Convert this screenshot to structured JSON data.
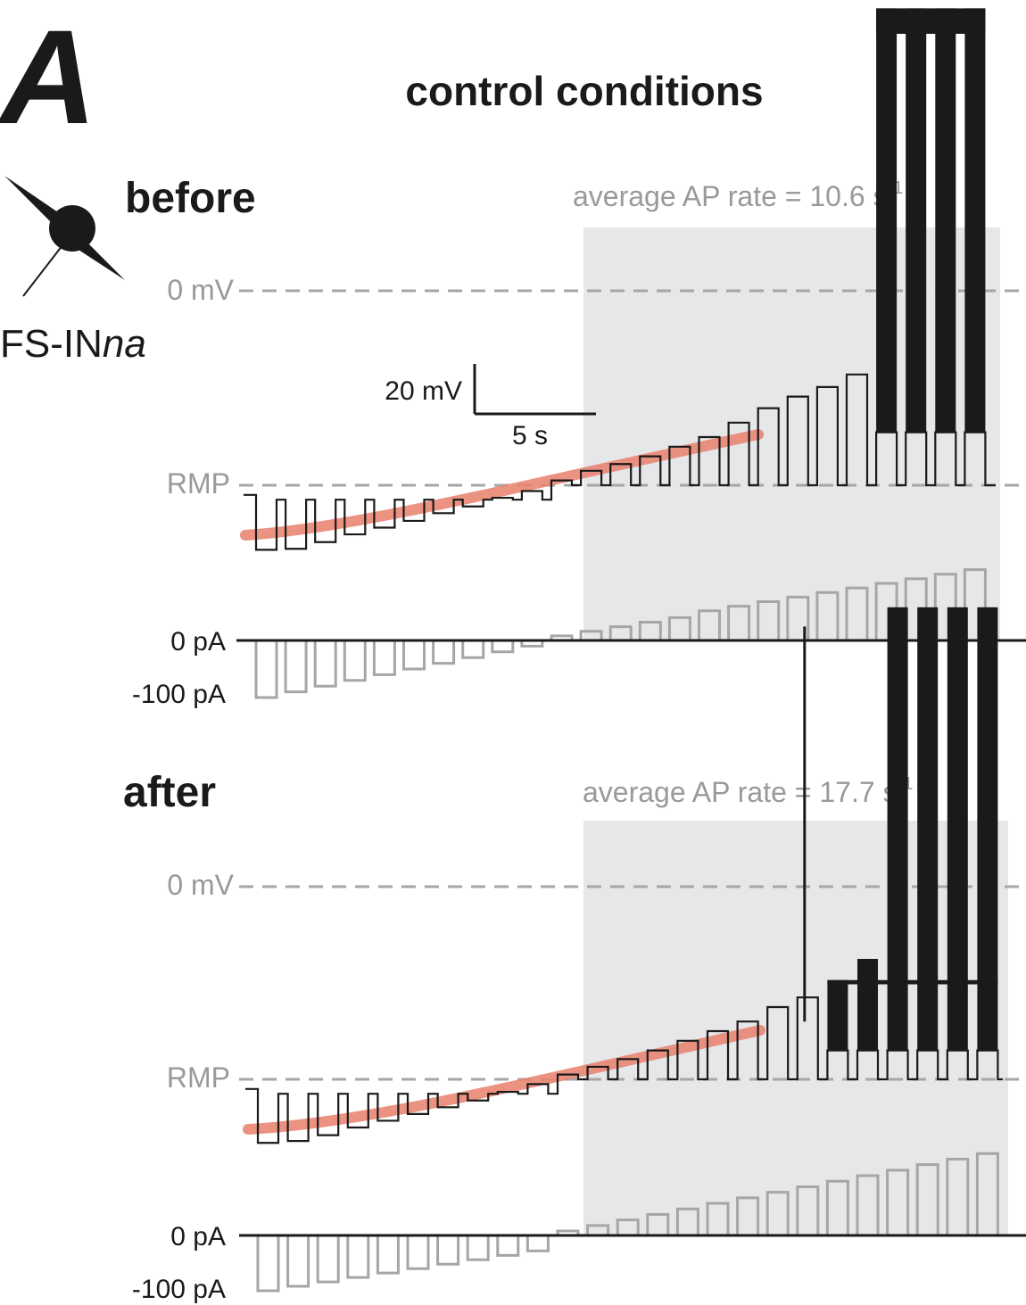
{
  "panel_letter": "A",
  "title": "control conditions",
  "cell": {
    "label_main": "FS-IN",
    "label_sub": "na"
  },
  "scale_bar": {
    "voltage_label": "20 mV",
    "time_label": "5 s",
    "voltage_mV": 20,
    "time_s": 5
  },
  "colors": {
    "trace": "#1a1a1a",
    "current": "#a6a6a6",
    "fit": "#e8836f",
    "shade": "#e6e7e9",
    "dashed": "#a6a6a6"
  },
  "chart_data": [
    {
      "type": "line",
      "condition": "before",
      "rate_prefix": "average AP rate = 10.6 s",
      "rate_exp": "-1",
      "rate_value": 10.6,
      "voltage_refs": [
        "0 mV",
        "RMP"
      ],
      "current_labels": [
        "0 pA",
        "-100 pA"
      ],
      "steps": 25,
      "spiking_from_step": 21,
      "voltage_step_tops_rel_rmp_mV": [
        -1.5,
        -1.5,
        -1.5,
        -1.5,
        -1.5,
        -1.5,
        -1.5,
        -1.5,
        -1.5,
        -1.5,
        0.5,
        1.5,
        2.2,
        3,
        4,
        5,
        6.5,
        8,
        9.2,
        10.2,
        11.5,
        49.5,
        49.5,
        49.5,
        49.5
      ],
      "voltage_step_bottoms_rel_rmp_mV": [
        -6.7,
        -6.6,
        -5.9,
        -5.1,
        -4.4,
        -3.7,
        -2.9,
        -2.2,
        -1.3,
        -0.6,
        0,
        0,
        0,
        0,
        0,
        0,
        0,
        0,
        0,
        0,
        0,
        0,
        0,
        0,
        0
      ],
      "spike_band_low_rel_rmp_mV": 5.5,
      "current_steps_pA": [
        -100,
        -90,
        -80,
        -70,
        -60,
        -50,
        -40,
        -30,
        -20,
        -10,
        8,
        16,
        24,
        32,
        40,
        52,
        60,
        68,
        76,
        84,
        92,
        100,
        108,
        116,
        124
      ]
    },
    {
      "type": "line",
      "condition": "after",
      "rate_prefix": "average AP rate = 17.7 s",
      "rate_exp": "-1",
      "rate_value": 17.7,
      "voltage_refs": [
        "0 mV",
        "RMP"
      ],
      "current_labels": [
        "0 pA",
        "-100 pA"
      ],
      "steps": 25,
      "spiking_from_step": 19,
      "voltage_step_tops_rel_rmp_mV": [
        -1.5,
        -1.5,
        -1.5,
        -1.5,
        -1.5,
        -1.5,
        -1.5,
        -1.5,
        -1.5,
        -1.5,
        0.5,
        1.3,
        2.1,
        3,
        4,
        5,
        6,
        7.5,
        8.5,
        10.3,
        12.5,
        49,
        49,
        49,
        49
      ],
      "voltage_step_bottoms_rel_rmp_mV": [
        -6.6,
        -6.4,
        -5.8,
        -5.0,
        -4.3,
        -3.6,
        -2.9,
        -2.2,
        -1.3,
        -0.5,
        0,
        0,
        0,
        0,
        0,
        0,
        0,
        0,
        0,
        0,
        0,
        0,
        0,
        0,
        0
      ],
      "spike_band_low_rel_rmp_mV": 3,
      "current_steps_pA": [
        -100,
        -92,
        -84,
        -76,
        -68,
        -60,
        -52,
        -44,
        -36,
        -28,
        8,
        18,
        28,
        38,
        48,
        58,
        68,
        78,
        88,
        98,
        108,
        118,
        128,
        138,
        148
      ]
    }
  ]
}
